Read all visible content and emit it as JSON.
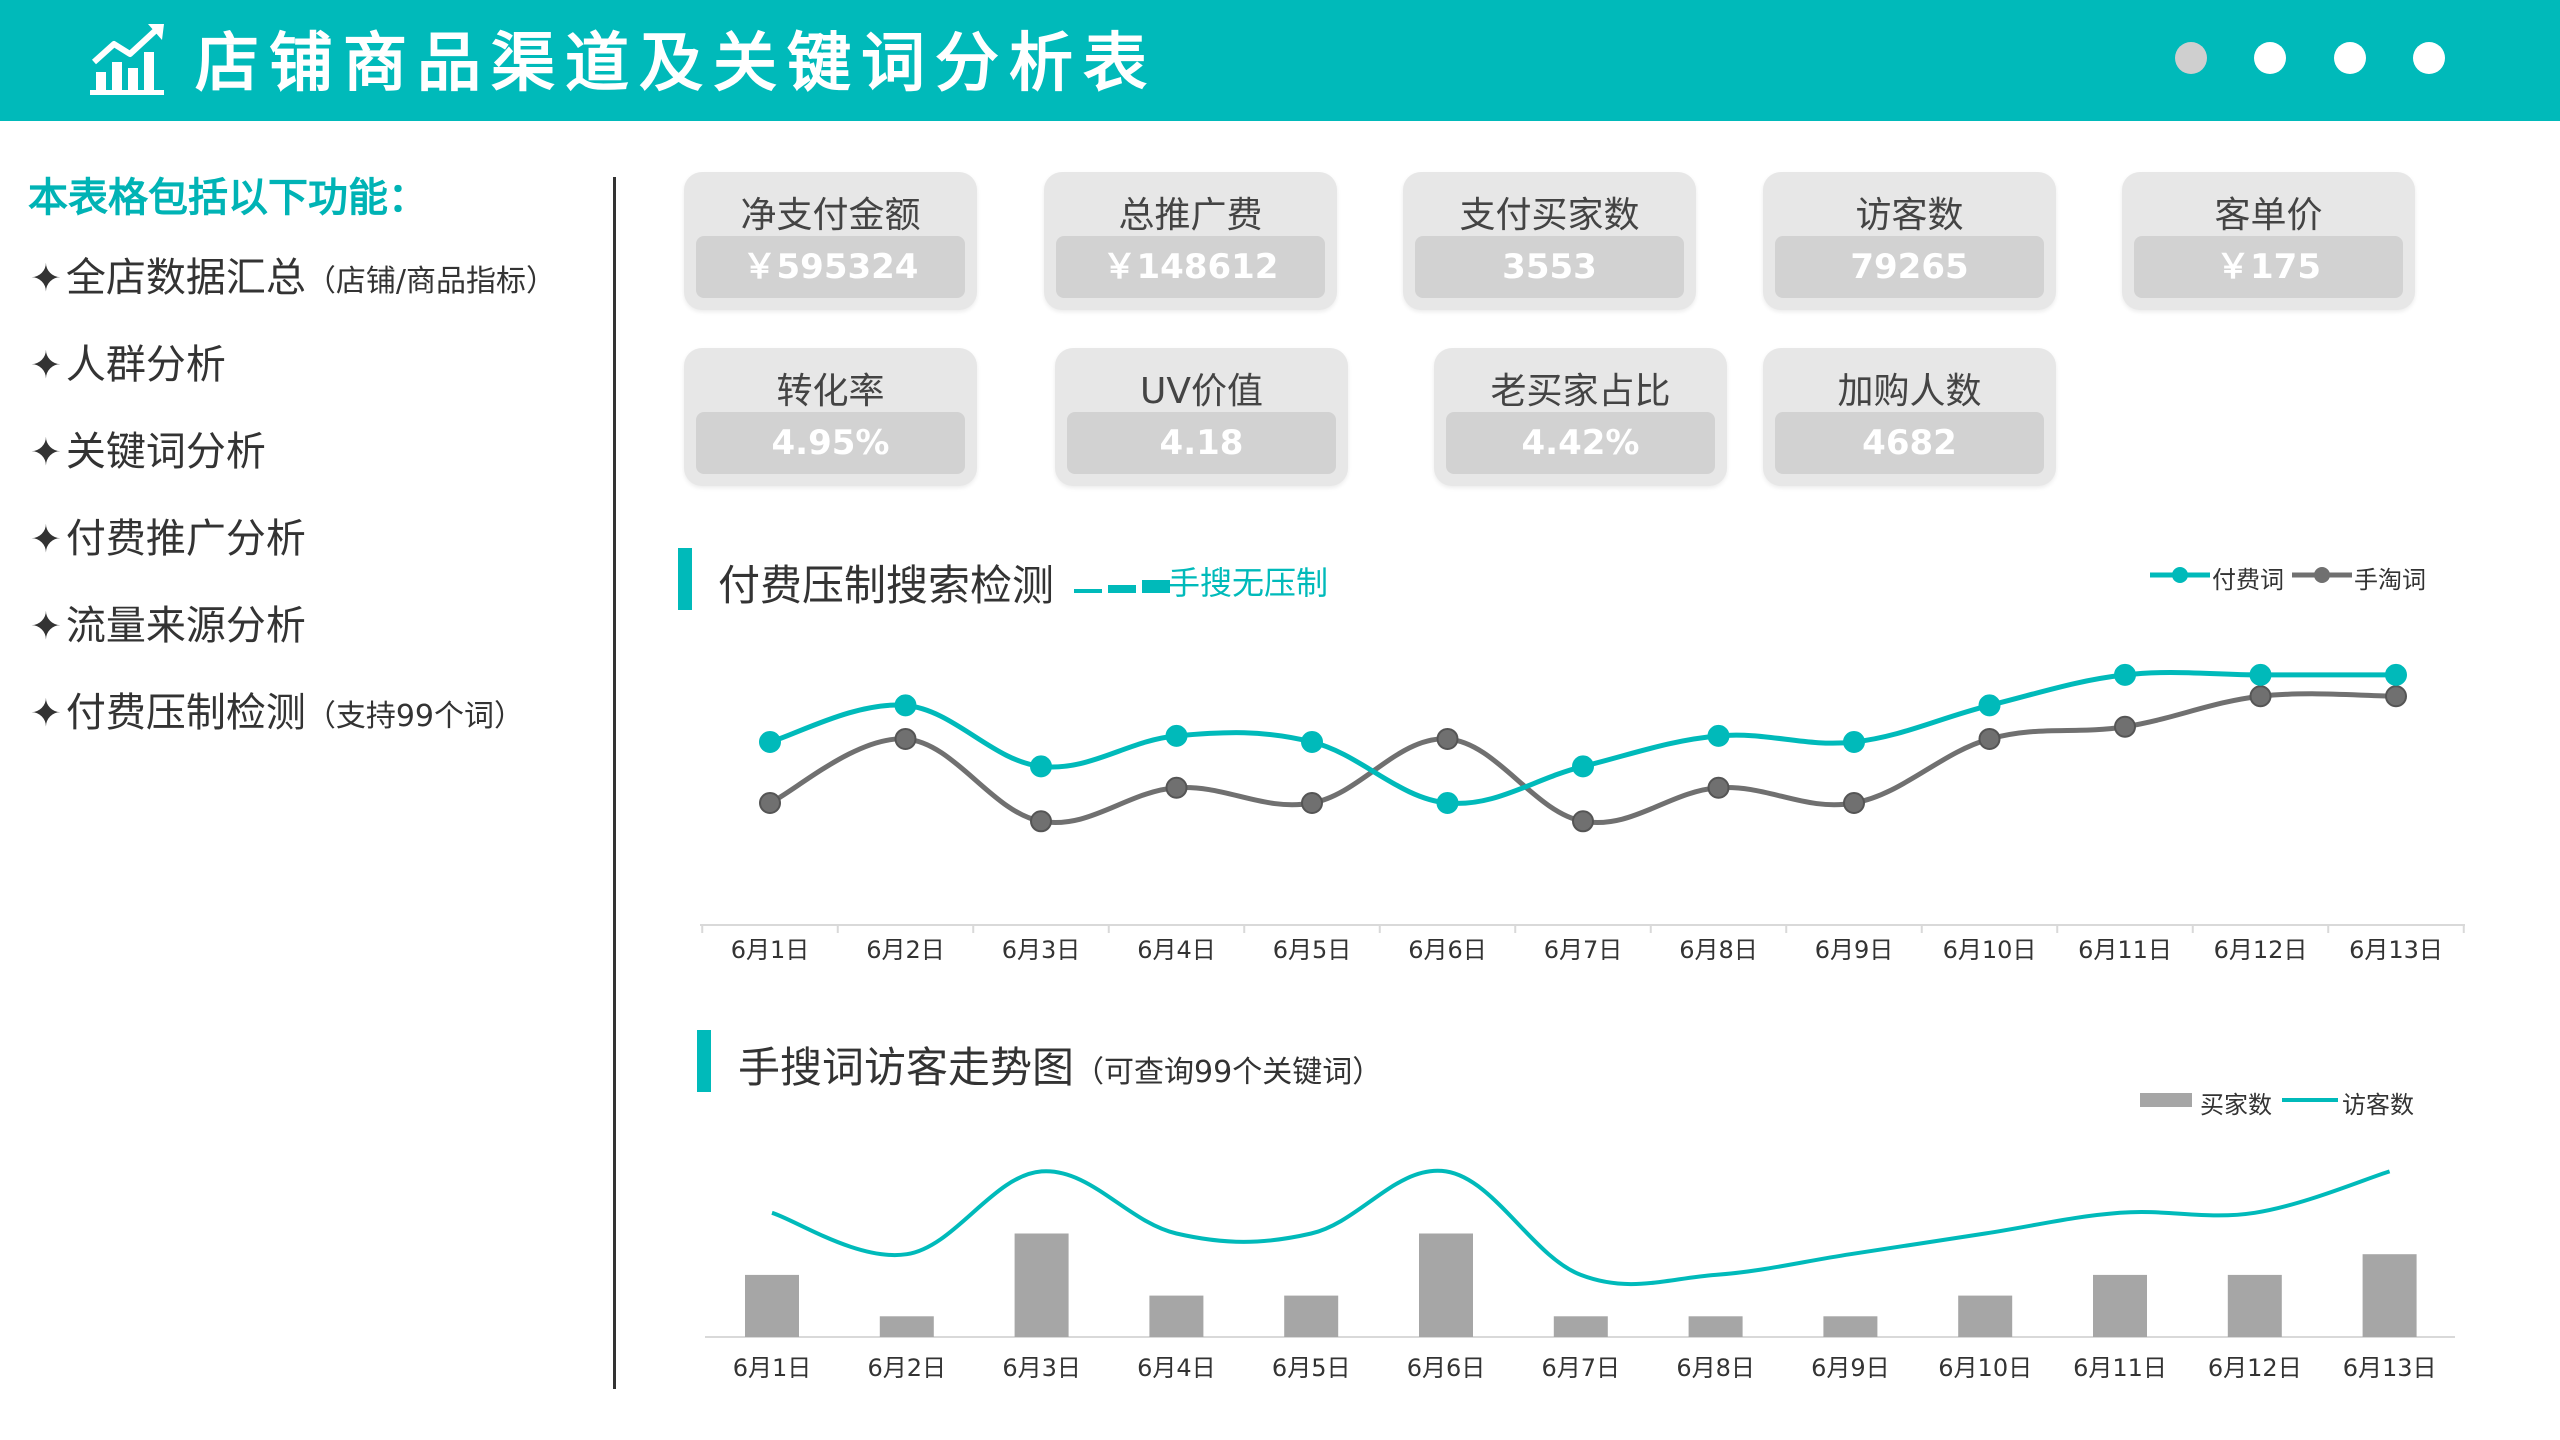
{
  "header": {
    "title": "店铺商品渠道及关键词分析表",
    "dots": [
      "#cfcfcf",
      "#ffffff",
      "#ffffff",
      "#ffffff"
    ]
  },
  "sidebar": {
    "title": "本表格包括以下功能：",
    "items": [
      {
        "star": "✦",
        "label": "全店数据汇总",
        "note": "（店铺/商品指标）"
      },
      {
        "star": "✦",
        "label": "人群分析",
        "note": ""
      },
      {
        "star": "✦",
        "label": "关键词分析",
        "note": ""
      },
      {
        "star": "✦",
        "label": "付费推广分析",
        "note": ""
      },
      {
        "star": "✦",
        "label": "流量来源分析",
        "note": ""
      },
      {
        "star": "✦",
        "label": "付费压制检测",
        "note": "（支持99个词）"
      }
    ]
  },
  "kpis": [
    {
      "label": "净支付金额",
      "value": "￥595324"
    },
    {
      "label": "总推广费",
      "value": "￥148612"
    },
    {
      "label": "支付买家数",
      "value": "3553"
    },
    {
      "label": "访客数",
      "value": "79265"
    },
    {
      "label": "客单价",
      "value": "￥175"
    },
    {
      "label": "转化率",
      "value": "4.95%"
    },
    {
      "label": "UV价值",
      "value": "4.18"
    },
    {
      "label": "老买家占比",
      "value": "4.42%"
    },
    {
      "label": "加购人数",
      "value": "4682"
    }
  ],
  "colors": {
    "accent": "#00BABA",
    "gray_line": "#707070",
    "bar": "#a6a6a6",
    "kpi_bg": "#e7e7e7"
  },
  "section1": {
    "title": "付费压制搜索检测",
    "subtitle": "手搜无压制"
  },
  "section2": {
    "title": "手搜词访客走势图",
    "note": "（可查询99个关键词）"
  },
  "chart_data": [
    {
      "type": "line",
      "title": "付费压制搜索检测",
      "categories": [
        "6月1日",
        "6月2日",
        "6月3日",
        "6月4日",
        "6月5日",
        "6月6日",
        "6月7日",
        "6月8日",
        "6月9日",
        "6月10日",
        "6月11日",
        "6月12日",
        "6月13日"
      ],
      "series": [
        {
          "name": "付费词",
          "color": "#00BABA",
          "values": [
            6,
            7.2,
            5.2,
            6.2,
            6,
            4,
            5.2,
            6.2,
            6,
            7.2,
            8.2,
            8.2,
            8.2
          ]
        },
        {
          "name": "手淘词",
          "color": "#707070",
          "values": [
            4,
            6.1,
            3.4,
            4.5,
            4,
            6.1,
            3.4,
            4.5,
            4,
            6.1,
            6.5,
            7.5,
            7.5
          ]
        }
      ],
      "legend": "top-right",
      "ylim": [
        0,
        10
      ]
    },
    {
      "type": "bar",
      "title": "手搜词访客走势图",
      "categories": [
        "6月1日",
        "6月2日",
        "6月3日",
        "6月4日",
        "6月5日",
        "6月6日",
        "6月7日",
        "6月8日",
        "6月9日",
        "6月10日",
        "6月11日",
        "6月12日",
        "6月13日"
      ],
      "series": [
        {
          "name": "买家数",
          "type": "bar",
          "color": "#a6a6a6",
          "values": [
            3,
            1,
            5,
            2,
            2,
            5,
            1,
            1,
            1,
            2,
            3,
            3,
            4
          ]
        },
        {
          "name": "访客数",
          "type": "line",
          "color": "#00BABA",
          "values": [
            6,
            4,
            8,
            5,
            5,
            8,
            3,
            3,
            4,
            5,
            6,
            6,
            8
          ]
        }
      ],
      "legend": "top-right",
      "ylim": [
        0,
        10
      ]
    }
  ]
}
